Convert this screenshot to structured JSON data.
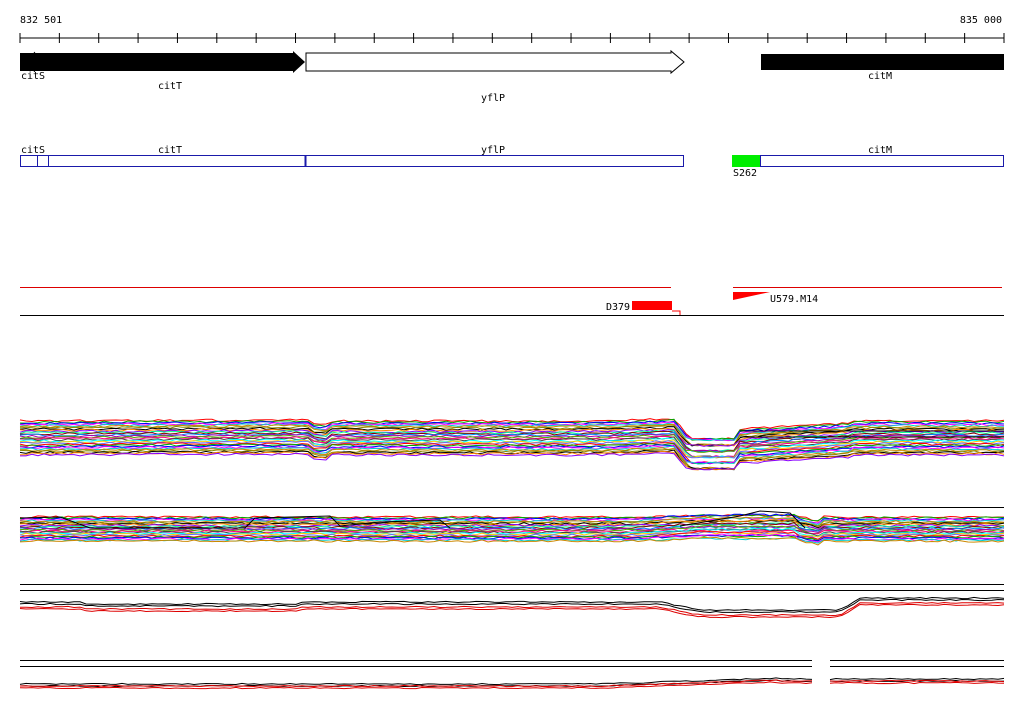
{
  "ruler": {
    "start_label": "832 501",
    "end_label": "835 000",
    "start_bp": 832501,
    "end_bp": 835000
  },
  "genes": [
    {
      "name": "citS",
      "start": 832501,
      "end": 833214,
      "strand": "+",
      "filled": true
    },
    {
      "name": "citT",
      "start": 832501,
      "end": 833214,
      "strand": "+",
      "filled": true
    },
    {
      "name": "yflP",
      "start": 833214,
      "end": 834176,
      "strand": "+",
      "filled": false
    },
    {
      "name": "citM",
      "start": 834371,
      "end": 835000,
      "strand": "+",
      "filled": true
    }
  ],
  "gene_labels": {
    "citS": "citS",
    "citT": "citT",
    "yflP": "yflP",
    "citM": "citM"
  },
  "segments": {
    "labels": {
      "citS": "citS",
      "citT": "citT",
      "yflP": "yflP",
      "citM": "citM"
    },
    "highlight_label": "S262",
    "highlight_color": "#00ee00",
    "border_color": "#1a1aaa"
  },
  "features": {
    "down_label": "D379",
    "up_label": "U579.M14",
    "color": "#ff0000"
  },
  "colors": {
    "gene_fill": "#000000",
    "track_line": "#000000",
    "red_line": "#dd0000"
  },
  "tracks": [
    {
      "name": "expression-track-1",
      "profile": "multi",
      "top_to_zero": 0.5
    },
    {
      "name": "expression-track-2",
      "profile": "multi"
    },
    {
      "name": "expression-track-3",
      "profile": "pair"
    },
    {
      "name": "expression-track-4",
      "profile": "pair"
    }
  ]
}
